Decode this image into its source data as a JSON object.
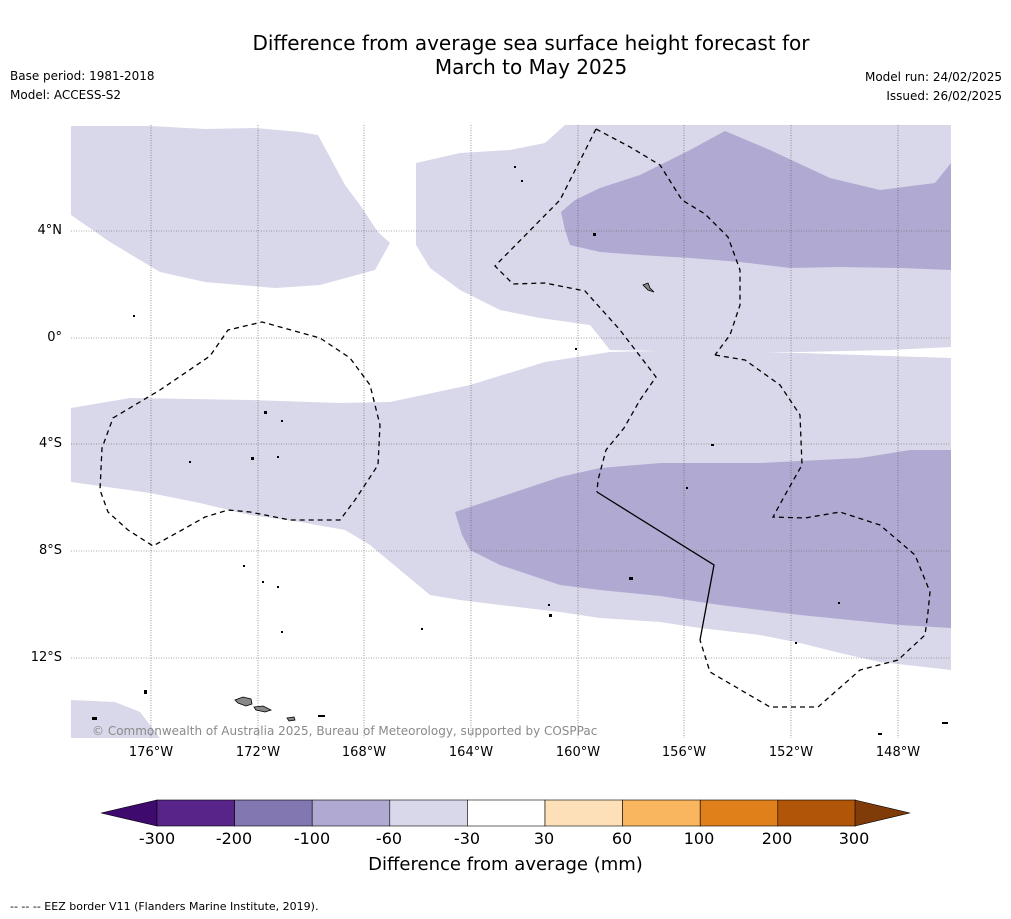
{
  "header": {
    "title_line1": "Difference from average sea surface height forecast for",
    "title_line2": "March to May 2025",
    "base_period": "Base period: 1981-2018",
    "model": "Model: ACCESS-S2",
    "model_run": "Model run: 24/02/2025",
    "issued": "Issued: 26/02/2025"
  },
  "map": {
    "lat_labels": [
      "4°N",
      "0°",
      "4°S",
      "8°S",
      "12°S"
    ],
    "lon_labels": [
      "176°W",
      "172°W",
      "168°W",
      "164°W",
      "160°W",
      "156°W",
      "152°W",
      "148°W"
    ],
    "copyright": "© Commonwealth of Australia 2025, Bureau of Meteorology, supported by COSPPac",
    "colors": {
      "light_band": "#d8d8ea",
      "mid_band": "#b0aad2",
      "land": "#888888"
    }
  },
  "colorbar": {
    "title": "Difference from average (mm)",
    "ticks": [
      "-300",
      "-200",
      "-100",
      "-60",
      "-30",
      "30",
      "60",
      "100",
      "200",
      "300"
    ],
    "colors": [
      "#3f0a6e",
      "#58248a",
      "#8277b0",
      "#b0aad2",
      "#d8d8ea",
      "#ffffff",
      "#fde0b8",
      "#f9b65e",
      "#e0801a",
      "#b15508",
      "#7f3b08"
    ]
  },
  "footnote": "--  --  -- EEZ border V11 (Flanders Marine Institute, 2019)."
}
